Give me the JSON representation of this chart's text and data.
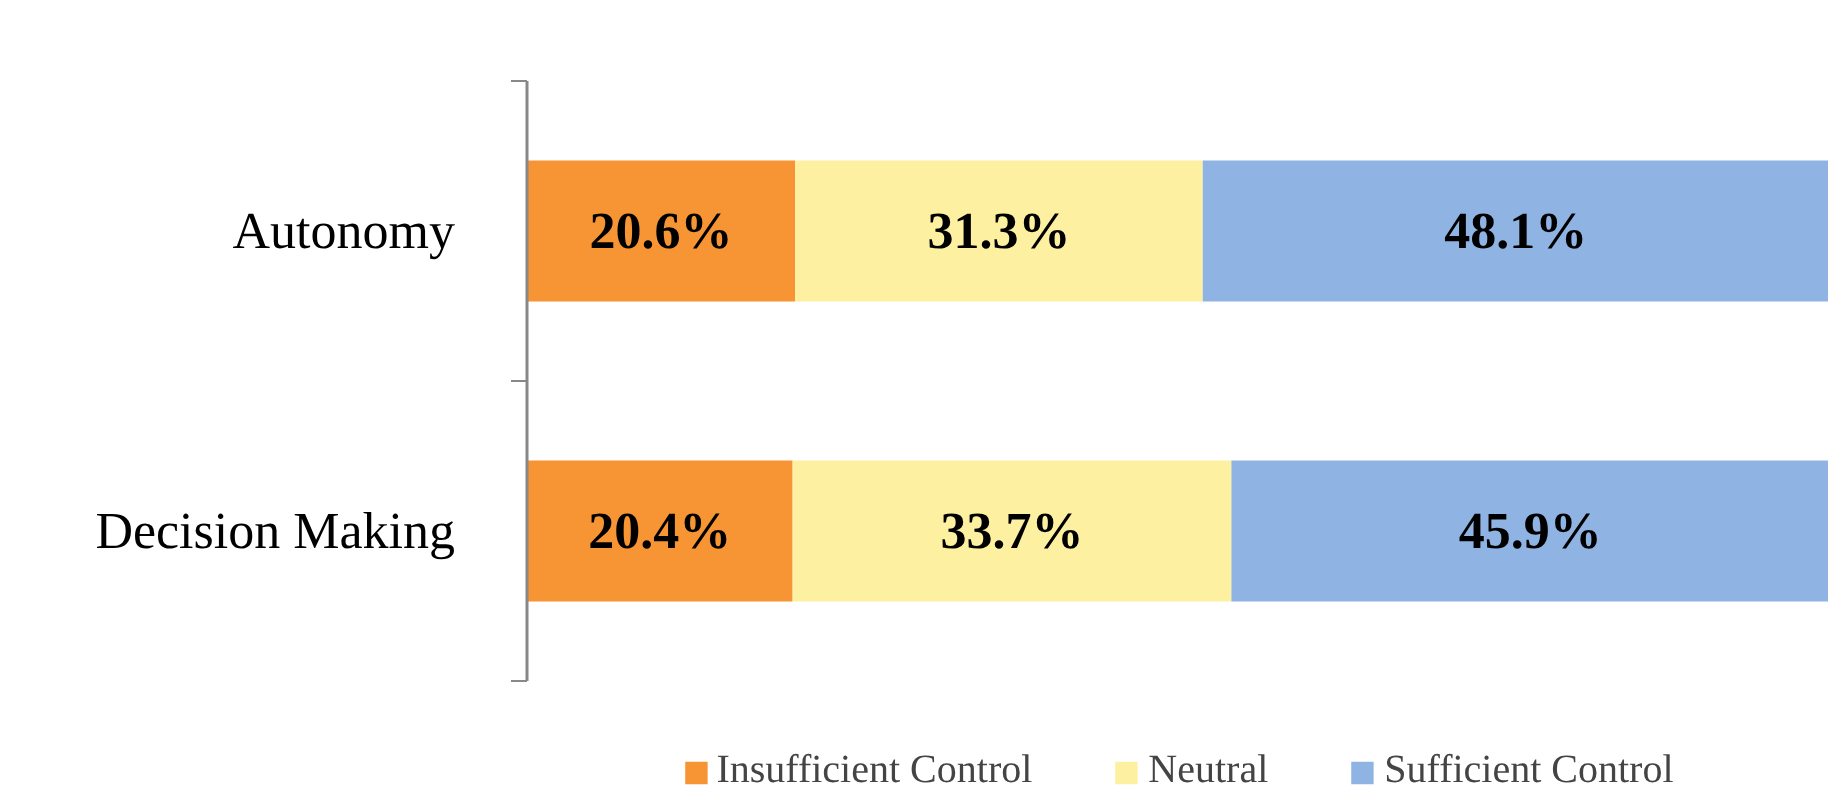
{
  "chart_data": {
    "type": "bar",
    "orientation": "horizontal",
    "stacked": true,
    "categories": [
      "Autonomy",
      "Decision Making"
    ],
    "xlim": [
      0,
      100
    ],
    "tick_labels": "y",
    "grid": false,
    "legend": "bottom",
    "series": [
      {
        "name": "Insufficient Control",
        "color": "#f79433",
        "values": [
          20.6,
          20.4
        ],
        "value_labels": [
          "20.6%",
          "20.4%"
        ]
      },
      {
        "name": "Neutral",
        "color": "#fdf0a0",
        "values": [
          31.3,
          33.7
        ],
        "value_labels": [
          "31.3%",
          "33.7%"
        ]
      },
      {
        "name": "Sufficient Control",
        "color": "#8fb4e3",
        "values": [
          48.1,
          45.9
        ],
        "value_labels": [
          "48.1%",
          "45.9%"
        ]
      }
    ]
  }
}
